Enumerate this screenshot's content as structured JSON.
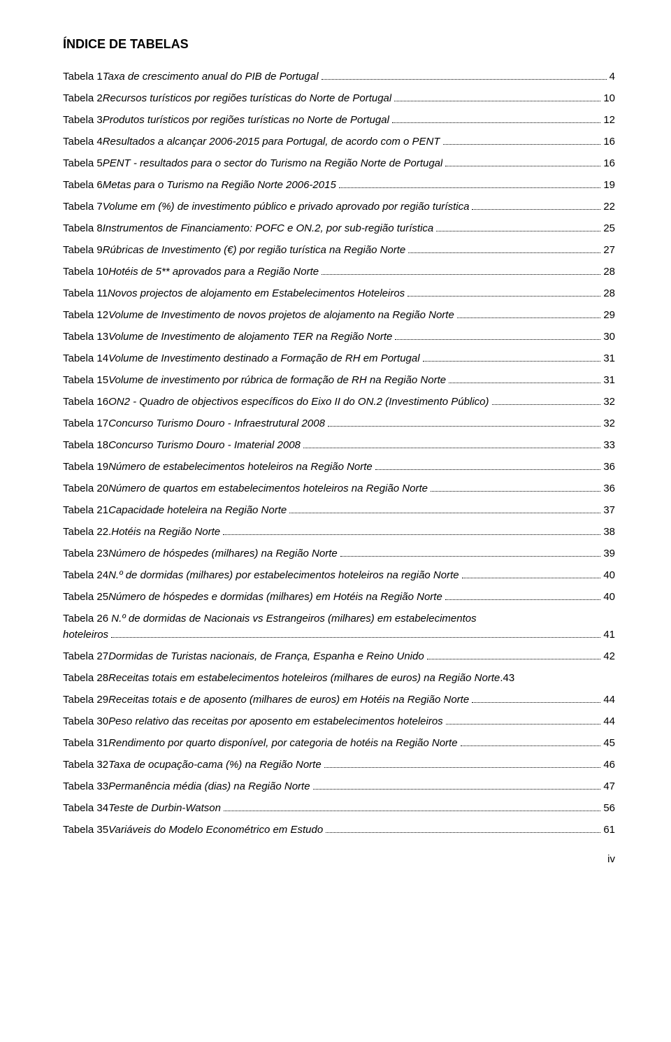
{
  "title": "ÍNDICE DE TABELAS",
  "page_number": "iv",
  "entries": [
    {
      "label": "Tabela 1",
      "desc": " Taxa de crescimento anual do PIB de Portugal",
      "page": "4",
      "italic": true
    },
    {
      "label": "Tabela 2",
      "desc": " Recursos turísticos por regiões turísticas do Norte de Portugal",
      "page": "10",
      "italic": true
    },
    {
      "label": "Tabela 3",
      "desc": " Produtos turísticos por regiões turísticas no Norte de Portugal",
      "page": "12",
      "italic": true
    },
    {
      "label": "Tabela 4",
      "desc": " Resultados a alcançar 2006-2015 para Portugal, de acordo com o PENT",
      "page": "16",
      "italic": true
    },
    {
      "label": "Tabela 5",
      "desc": " PENT - resultados para o sector do Turismo na Região Norte de Portugal",
      "page": "16",
      "italic": true
    },
    {
      "label": "Tabela 6",
      "desc": " Metas para o Turismo na Região Norte 2006-2015",
      "page": "19",
      "italic": true
    },
    {
      "label": "Tabela 7",
      "desc": " Volume em (%) de investimento público e privado aprovado por região turística",
      "page": "22",
      "italic": true
    },
    {
      "label": "Tabela 8",
      "desc": " Instrumentos de Financiamento: POFC e ON.2, por sub-região turística",
      "page": "25",
      "italic": true
    },
    {
      "label": "Tabela 9",
      "desc": " Rúbricas de Investimento (€) por região turística na Região Norte",
      "page": "27",
      "italic": true
    },
    {
      "label": "Tabela 10",
      "desc": " Hotéis de 5** aprovados para a Região Norte",
      "page": "28",
      "italic": true
    },
    {
      "label": "Tabela 11",
      "desc": " Novos projectos de alojamento em Estabelecimentos Hoteleiros",
      "page": "28",
      "italic": true
    },
    {
      "label": "Tabela 12",
      "desc": " Volume de Investimento de novos projetos de alojamento na Região Norte",
      "page": "29",
      "italic": true
    },
    {
      "label": "Tabela 13",
      "desc": " Volume de Investimento de alojamento TER na Região Norte",
      "page": "30",
      "italic": true
    },
    {
      "label": "Tabela 14",
      "desc": " Volume de Investimento destinado a Formação de RH em Portugal",
      "page": "31",
      "italic": true
    },
    {
      "label": "Tabela 15",
      "desc": " Volume de investimento por rúbrica de formação de RH na Região Norte",
      "page": "31",
      "italic": true
    },
    {
      "label": "Tabela 16",
      "desc": " ON2 - Quadro de objectivos específicos do Eixo II do ON.2 (Investimento Público)",
      "page": "32",
      "italic": true
    },
    {
      "label": "Tabela 17",
      "desc": " Concurso Turismo Douro - Infraestrutural 2008",
      "page": "32",
      "italic": true
    },
    {
      "label": "Tabela 18",
      "desc": " Concurso Turismo Douro - Imaterial 2008",
      "page": "33",
      "italic": true
    },
    {
      "label": "Tabela 19",
      "desc": " Número de estabelecimentos hoteleiros na Região Norte",
      "page": "36",
      "italic": true
    },
    {
      "label": "Tabela 20",
      "desc": " Número de quartos em estabelecimentos hoteleiros na Região Norte",
      "page": "36",
      "italic": true
    },
    {
      "label": "Tabela 21",
      "desc": " Capacidade hoteleira na Região Norte",
      "page": "37",
      "italic": true
    },
    {
      "label": "Tabela 22.",
      "desc": " Hotéis na Região Norte",
      "page": "38",
      "italic": true
    },
    {
      "label": "Tabela 23",
      "desc": " Número de hóspedes (milhares) na Região Norte",
      "page": "39",
      "italic": true
    },
    {
      "label": "Tabela 24",
      "desc": " N.º de dormidas (milhares) por estabelecimentos hoteleiros na região Norte",
      "page": "40",
      "italic": true
    },
    {
      "label": "Tabela 25",
      "desc": " Número de hóspedes e dormidas (milhares) em Hotéis na Região Norte",
      "page": "40",
      "italic": true
    },
    {
      "label": "Tabela 26",
      "desc_line1": " N.º de dormidas de Nacionais vs Estrangeiros (milhares) em estabelecimentos",
      "desc_line2": "hoteleiros",
      "page": "41",
      "italic": true,
      "multiline": true
    },
    {
      "label": "Tabela 27",
      "desc": " Dormidas de Turistas nacionais, de França, Espanha e Reino Unido",
      "page": "42",
      "italic": true
    },
    {
      "label": "Tabela 28",
      "desc": " Receitas totais em estabelecimentos hoteleiros (milhares de euros) na Região Norte",
      "page": "43",
      "italic": true,
      "nodots": true
    },
    {
      "label": "Tabela 29",
      "desc": " Receitas totais e de aposento (milhares de euros) em Hotéis na Região Norte",
      "page": "44",
      "italic": true
    },
    {
      "label": "Tabela 30",
      "desc": " Peso relativo das receitas por aposento em estabelecimentos hoteleiros",
      "page": "44",
      "italic": true
    },
    {
      "label": "Tabela 31",
      "desc": " Rendimento por quarto disponível, por categoria de hotéis na Região Norte",
      "page": "45",
      "italic": true
    },
    {
      "label": "Tabela 32",
      "desc": " Taxa de ocupação-cama (%) na Região Norte",
      "page": "46",
      "italic": true
    },
    {
      "label": "Tabela 33",
      "desc": " Permanência média (dias) na Região Norte",
      "page": "47",
      "italic": true
    },
    {
      "label": "Tabela 34",
      "desc": " Teste de Durbin-Watson",
      "page": "56",
      "italic": true
    },
    {
      "label": "Tabela 35",
      "desc": " Variáveis do Modelo Econométrico em Estudo",
      "page": "61",
      "italic": true
    }
  ]
}
